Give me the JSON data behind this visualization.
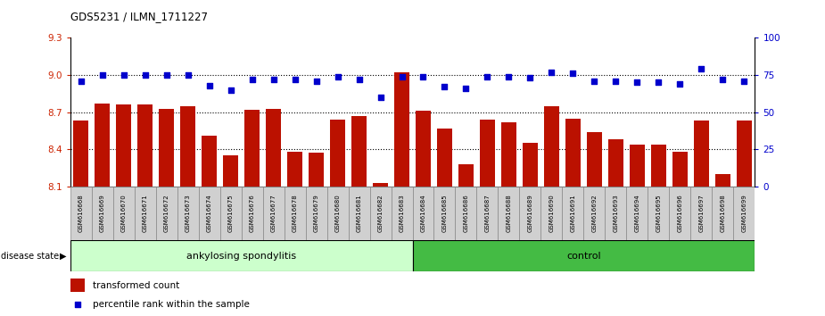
{
  "title": "GDS5231 / ILMN_1711227",
  "samples": [
    "GSM616668",
    "GSM616669",
    "GSM616670",
    "GSM616671",
    "GSM616672",
    "GSM616673",
    "GSM616674",
    "GSM616675",
    "GSM616676",
    "GSM616677",
    "GSM616678",
    "GSM616679",
    "GSM616680",
    "GSM616681",
    "GSM616682",
    "GSM616683",
    "GSM616684",
    "GSM616685",
    "GSM616686",
    "GSM616687",
    "GSM616688",
    "GSM616689",
    "GSM616690",
    "GSM616691",
    "GSM616692",
    "GSM616693",
    "GSM616694",
    "GSM616695",
    "GSM616696",
    "GSM616697",
    "GSM616698",
    "GSM616699"
  ],
  "bar_values": [
    8.63,
    8.77,
    8.76,
    8.76,
    8.73,
    8.75,
    8.51,
    8.35,
    8.72,
    8.73,
    8.38,
    8.37,
    8.64,
    8.67,
    8.13,
    9.02,
    8.71,
    8.57,
    8.28,
    8.64,
    8.62,
    8.45,
    8.75,
    8.65,
    8.54,
    8.48,
    8.44,
    8.44,
    8.38,
    8.63,
    8.2,
    8.63
  ],
  "blue_values": [
    71,
    75,
    75,
    75,
    75,
    75,
    68,
    65,
    72,
    72,
    72,
    71,
    74,
    72,
    60,
    74,
    74,
    67,
    66,
    74,
    74,
    73,
    77,
    76,
    71,
    71,
    70,
    70,
    69,
    79,
    72,
    71
  ],
  "ankylosing_count": 16,
  "control_count": 16,
  "ylim_left": [
    8.1,
    9.3
  ],
  "ylim_right": [
    0,
    100
  ],
  "yticks_left": [
    8.1,
    8.4,
    8.7,
    9.0,
    9.3
  ],
  "yticks_right": [
    0,
    25,
    50,
    75,
    100
  ],
  "bar_color": "#BB1100",
  "dot_color": "#0000CC",
  "ankylosing_color": "#CCFFCC",
  "control_color": "#44BB44",
  "label_box_color": "#D0D0D0",
  "tick_label_color_left": "#CC2200",
  "tick_label_color_right": "#0000CC",
  "dotted_line_ticks": [
    8.4,
    8.7,
    9.0
  ]
}
